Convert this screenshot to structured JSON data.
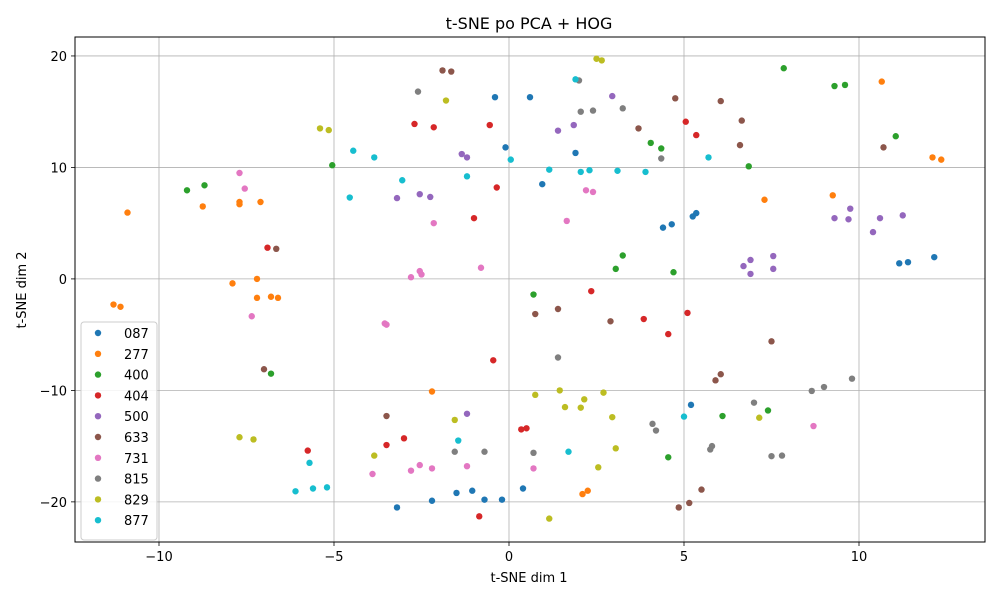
{
  "chart_data": {
    "type": "scatter",
    "title": "t-SNE po PCA + HOG",
    "xlabel": "t-SNE dim 1",
    "ylabel": "t-SNE dim 2",
    "xlim": [
      -12.4,
      13.6
    ],
    "ylim": [
      -23.6,
      21.7
    ],
    "xticks": [
      -10,
      -5,
      0,
      5,
      10
    ],
    "yticks": [
      -20,
      -10,
      0,
      10,
      20
    ],
    "xtick_labels": [
      "−10",
      "−5",
      "0",
      "5",
      "10"
    ],
    "ytick_labels": [
      "−20",
      "−10",
      "0",
      "10",
      "20"
    ],
    "grid": true,
    "legend_position": "center-left",
    "series": [
      {
        "name": "087",
        "color": "#1f77b4",
        "points": [
          [
            -0.4,
            16.3
          ],
          [
            0.6,
            16.3
          ],
          [
            -0.1,
            11.8
          ],
          [
            0.95,
            8.5
          ],
          [
            1.9,
            11.3
          ],
          [
            4.65,
            4.9
          ],
          [
            4.4,
            4.6
          ],
          [
            5.25,
            5.6
          ],
          [
            5.35,
            5.9
          ],
          [
            11.15,
            1.4
          ],
          [
            11.4,
            1.5
          ],
          [
            12.15,
            1.95
          ],
          [
            5.2,
            -11.3
          ],
          [
            0.4,
            -18.8
          ],
          [
            -1.5,
            -19.2
          ],
          [
            -1.05,
            -19.0
          ],
          [
            -0.7,
            -19.8
          ],
          [
            -0.2,
            -19.8
          ],
          [
            -2.2,
            -19.9
          ],
          [
            -3.2,
            -20.5
          ]
        ]
      },
      {
        "name": "277",
        "color": "#ff7f0e",
        "points": [
          [
            10.65,
            17.7
          ],
          [
            12.1,
            10.9
          ],
          [
            12.35,
            10.7
          ],
          [
            9.25,
            7.5
          ],
          [
            7.3,
            7.1
          ],
          [
            -10.9,
            5.95
          ],
          [
            -8.75,
            6.5
          ],
          [
            -7.7,
            6.9
          ],
          [
            -7.7,
            6.7
          ],
          [
            -7.1,
            6.9
          ],
          [
            -11.3,
            -2.3
          ],
          [
            -11.1,
            -2.5
          ],
          [
            -7.9,
            -0.4
          ],
          [
            -7.2,
            0.0
          ],
          [
            -7.2,
            -1.7
          ],
          [
            -6.8,
            -1.6
          ],
          [
            -6.6,
            -1.7
          ],
          [
            -2.2,
            -10.1
          ],
          [
            2.1,
            -19.3
          ],
          [
            2.25,
            -19.0
          ]
        ]
      },
      {
        "name": "400",
        "color": "#2ca02c",
        "points": [
          [
            7.85,
            18.9
          ],
          [
            9.3,
            17.3
          ],
          [
            9.6,
            17.4
          ],
          [
            11.05,
            12.8
          ],
          [
            4.05,
            12.2
          ],
          [
            4.35,
            11.7
          ],
          [
            6.85,
            10.1
          ],
          [
            -5.05,
            10.2
          ],
          [
            -9.2,
            7.95
          ],
          [
            -8.7,
            8.4
          ],
          [
            3.25,
            2.1
          ],
          [
            3.05,
            0.9
          ],
          [
            4.7,
            0.6
          ],
          [
            0.7,
            -1.4
          ],
          [
            -6.8,
            -8.5
          ],
          [
            6.1,
            -12.3
          ],
          [
            7.4,
            -11.8
          ],
          [
            4.55,
            -16.0
          ]
        ]
      },
      {
        "name": "404",
        "color": "#d62728",
        "points": [
          [
            -2.7,
            13.9
          ],
          [
            -2.15,
            13.6
          ],
          [
            -0.55,
            13.8
          ],
          [
            5.05,
            14.1
          ],
          [
            5.35,
            12.9
          ],
          [
            -0.35,
            8.2
          ],
          [
            -1.0,
            5.45
          ],
          [
            -6.9,
            2.8
          ],
          [
            2.35,
            -1.1
          ],
          [
            3.85,
            -3.6
          ],
          [
            5.1,
            -3.05
          ],
          [
            4.55,
            -4.95
          ],
          [
            -0.45,
            -7.3
          ],
          [
            -3.5,
            -14.9
          ],
          [
            -3.0,
            -14.3
          ],
          [
            0.35,
            -13.5
          ],
          [
            0.5,
            -13.4
          ],
          [
            -5.75,
            -15.4
          ],
          [
            -0.85,
            -21.3
          ]
        ]
      },
      {
        "name": "500",
        "color": "#9467bd",
        "points": [
          [
            2.95,
            16.4
          ],
          [
            1.4,
            13.3
          ],
          [
            1.85,
            13.8
          ],
          [
            -1.35,
            11.2
          ],
          [
            -1.2,
            10.9
          ],
          [
            -2.55,
            7.6
          ],
          [
            -2.25,
            7.35
          ],
          [
            -3.2,
            7.25
          ],
          [
            9.75,
            6.3
          ],
          [
            9.3,
            5.45
          ],
          [
            9.7,
            5.35
          ],
          [
            10.6,
            5.45
          ],
          [
            11.25,
            5.7
          ],
          [
            10.4,
            4.2
          ],
          [
            7.55,
            2.05
          ],
          [
            6.9,
            1.7
          ],
          [
            6.7,
            1.15
          ],
          [
            7.55,
            0.9
          ],
          [
            6.9,
            0.45
          ],
          [
            -1.2,
            -12.1
          ]
        ]
      },
      {
        "name": "633",
        "color": "#8c564b",
        "points": [
          [
            -1.9,
            18.7
          ],
          [
            -1.65,
            18.6
          ],
          [
            4.75,
            16.2
          ],
          [
            6.05,
            15.95
          ],
          [
            3.7,
            13.5
          ],
          [
            6.65,
            14.2
          ],
          [
            6.6,
            12.0
          ],
          [
            10.7,
            11.8
          ],
          [
            -6.65,
            2.7
          ],
          [
            1.4,
            -2.7
          ],
          [
            0.75,
            -3.15
          ],
          [
            2.9,
            -3.8
          ],
          [
            7.5,
            -5.6
          ],
          [
            6.05,
            -8.55
          ],
          [
            5.9,
            -9.1
          ],
          [
            -7.0,
            -8.1
          ],
          [
            -3.5,
            -12.3
          ],
          [
            5.5,
            -18.9
          ],
          [
            4.85,
            -20.5
          ],
          [
            5.15,
            -20.1
          ]
        ]
      },
      {
        "name": "731",
        "color": "#e377c2",
        "points": [
          [
            -7.7,
            9.5
          ],
          [
            -7.55,
            8.1
          ],
          [
            2.2,
            7.95
          ],
          [
            2.4,
            7.8
          ],
          [
            -2.15,
            5.0
          ],
          [
            1.65,
            5.2
          ],
          [
            -0.8,
            1.0
          ],
          [
            -2.55,
            0.7
          ],
          [
            -2.5,
            0.4
          ],
          [
            -2.8,
            0.15
          ],
          [
            -7.35,
            -3.35
          ],
          [
            -3.55,
            -4.0
          ],
          [
            -3.5,
            -4.1
          ],
          [
            8.7,
            -13.2
          ],
          [
            -1.2,
            -16.8
          ],
          [
            -2.55,
            -16.7
          ],
          [
            -2.2,
            -17.0
          ],
          [
            -2.8,
            -17.2
          ],
          [
            0.7,
            -17.0
          ],
          [
            -3.9,
            -17.5
          ]
        ]
      },
      {
        "name": "815",
        "color": "#7f7f7f",
        "points": [
          [
            -2.6,
            16.8
          ],
          [
            2.0,
            17.8
          ],
          [
            2.05,
            15.0
          ],
          [
            2.4,
            15.1
          ],
          [
            3.25,
            15.3
          ],
          [
            4.35,
            10.8
          ],
          [
            1.4,
            -7.05
          ],
          [
            8.65,
            -10.05
          ],
          [
            9.0,
            -9.7
          ],
          [
            9.8,
            -8.95
          ],
          [
            7.0,
            -11.1
          ],
          [
            4.1,
            -13.0
          ],
          [
            4.2,
            -13.6
          ],
          [
            5.8,
            -15.0
          ],
          [
            5.75,
            -15.3
          ],
          [
            7.5,
            -15.9
          ],
          [
            7.8,
            -15.85
          ],
          [
            -1.55,
            -15.5
          ],
          [
            -0.7,
            -15.5
          ],
          [
            0.7,
            -15.6
          ]
        ]
      },
      {
        "name": "829",
        "color": "#bcbd22",
        "points": [
          [
            2.5,
            19.75
          ],
          [
            2.65,
            19.6
          ],
          [
            -1.8,
            16.0
          ],
          [
            -5.4,
            13.5
          ],
          [
            -5.15,
            13.35
          ],
          [
            -7.7,
            -14.2
          ],
          [
            -7.3,
            -14.4
          ],
          [
            1.45,
            -10.0
          ],
          [
            2.7,
            -10.2
          ],
          [
            0.75,
            -10.4
          ],
          [
            2.15,
            -10.8
          ],
          [
            1.6,
            -11.5
          ],
          [
            2.05,
            -11.55
          ],
          [
            2.95,
            -12.4
          ],
          [
            7.15,
            -12.45
          ],
          [
            -1.55,
            -12.65
          ],
          [
            3.05,
            -15.2
          ],
          [
            -3.85,
            -15.85
          ],
          [
            2.55,
            -16.9
          ],
          [
            1.15,
            -21.5
          ]
        ]
      },
      {
        "name": "877",
        "color": "#17becf",
        "points": [
          [
            1.9,
            17.9
          ],
          [
            -4.45,
            11.5
          ],
          [
            -3.85,
            10.9
          ],
          [
            0.05,
            10.7
          ],
          [
            5.7,
            10.9
          ],
          [
            1.15,
            9.8
          ],
          [
            2.05,
            9.6
          ],
          [
            2.3,
            9.75
          ],
          [
            3.1,
            9.7
          ],
          [
            3.9,
            9.6
          ],
          [
            -1.2,
            9.2
          ],
          [
            -3.05,
            8.85
          ],
          [
            -4.55,
            7.3
          ],
          [
            5.0,
            -12.35
          ],
          [
            -1.45,
            -14.5
          ],
          [
            1.7,
            -15.5
          ],
          [
            -5.7,
            -16.5
          ],
          [
            -5.6,
            -18.8
          ],
          [
            -5.2,
            -18.7
          ],
          [
            -6.1,
            -19.05
          ]
        ]
      }
    ]
  }
}
